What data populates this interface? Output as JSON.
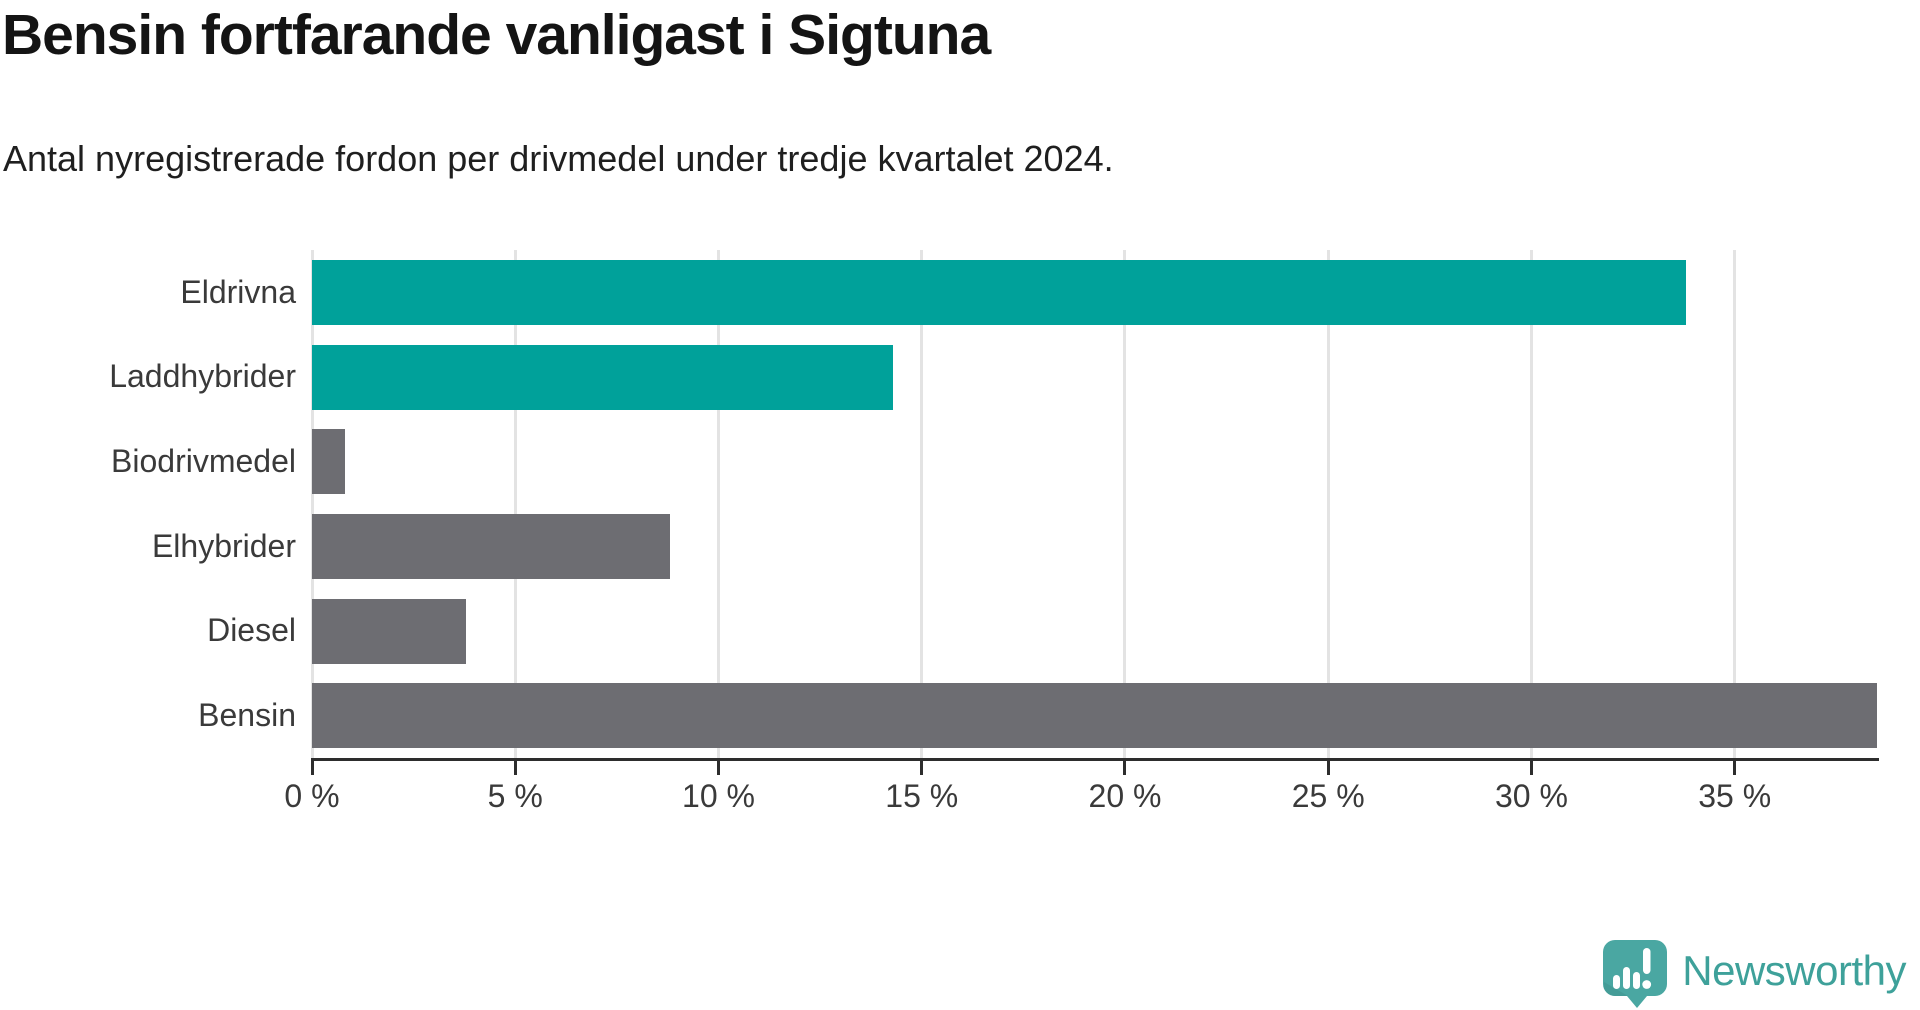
{
  "header": {
    "title": "Bensin fortfarande vanligast i Sigtuna",
    "subtitle": "Antal nyregistrerade fordon per drivmedel under tredje kvartalet 2024."
  },
  "chart_data": {
    "type": "bar",
    "orientation": "horizontal",
    "title": "Bensin fortfarande vanligast i Sigtuna",
    "subtitle": "Antal nyregistrerade fordon per drivmedel under tredje kvartalet 2024.",
    "categories": [
      "Eldrivna",
      "Laddhybrider",
      "Biodrivmedel",
      "Elhybrider",
      "Diesel",
      "Bensin"
    ],
    "values": [
      33.8,
      14.3,
      0.8,
      8.8,
      3.8,
      38.5
    ],
    "unit": "%",
    "xlabel": "",
    "ylabel": "",
    "xlim": [
      0,
      38.5
    ],
    "x_ticks": [
      0,
      5,
      10,
      15,
      20,
      25,
      30,
      35
    ],
    "x_tick_labels": [
      "0 %",
      "5 %",
      "10 %",
      "15 %",
      "20 %",
      "25 %",
      "30 %",
      "35 %"
    ],
    "bar_colors": [
      "#00a19a",
      "#00a19a",
      "#6d6d72",
      "#6d6d72",
      "#6d6d72",
      "#6d6d72"
    ],
    "grid": true,
    "legend": false
  },
  "colors": {
    "accent_teal": "#00a19a",
    "bar_gray": "#6d6d72",
    "grid_line": "#e3e3e3",
    "axis_line": "#2d2d2d",
    "title_text": "#141414",
    "label_text": "#3a3a3a",
    "logo_teal": "#4aa7a2",
    "logo_fold_teal": "#3f948e",
    "brand_text_teal": "#3ea19a"
  },
  "footer": {
    "brand": "Newsworthy",
    "logo_icon": "newsworthy-speech-bubble-barchart-icon"
  }
}
